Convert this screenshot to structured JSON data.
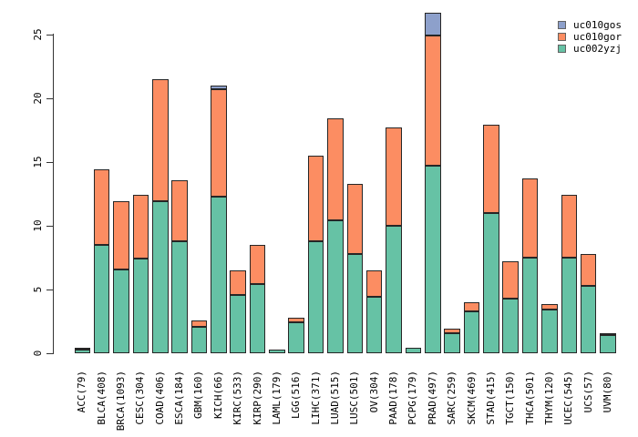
{
  "colors": {
    "background": "#ffffff",
    "axis": "#333333",
    "bar_border": "#262626",
    "uc010gos": "#8da0cb",
    "uc010gor": "#fc8d62",
    "uc002yzj": "#66c2a5"
  },
  "chart_data": {
    "type": "bar",
    "stacked": true,
    "title": "",
    "xlabel": "",
    "ylabel": "",
    "grid": false,
    "ylim": [
      0,
      25
    ],
    "y_ticks": [
      0,
      5,
      10,
      15,
      20,
      25
    ],
    "categories": [
      "ACC(79)",
      "BLCA(408)",
      "BRCA(1093)",
      "CESC(304)",
      "COAD(406)",
      "ESCA(184)",
      "GBM(160)",
      "KICH(66)",
      "KIRC(533)",
      "KIRP(290)",
      "LAML(179)",
      "LGG(516)",
      "LIHC(371)",
      "LUAD(515)",
      "LUSC(501)",
      "OV(304)",
      "PAAD(178)",
      "PCPG(179)",
      "PRAD(497)",
      "SARC(259)",
      "SKCM(469)",
      "STAD(415)",
      "TGCT(150)",
      "THCA(501)",
      "THYM(120)",
      "UCEC(545)",
      "UCS(57)",
      "UVM(80)"
    ],
    "series": [
      {
        "name": "uc002yzj",
        "color_key": "uc002yzj",
        "values": [
          0.3,
          8.5,
          6.6,
          7.4,
          11.9,
          8.8,
          2.1,
          12.3,
          4.6,
          5.4,
          0.3,
          2.4,
          8.8,
          10.4,
          7.8,
          4.4,
          10.0,
          0.4,
          14.7,
          1.6,
          3.3,
          11.0,
          4.3,
          7.5,
          3.4,
          7.5,
          5.3,
          1.4
        ]
      },
      {
        "name": "uc010gor",
        "color_key": "uc010gor",
        "values": [
          0.15,
          5.9,
          5.3,
          5.0,
          9.6,
          4.8,
          0.5,
          8.4,
          1.9,
          3.1,
          0,
          0.4,
          6.7,
          8.0,
          5.5,
          2.1,
          7.7,
          0,
          10.2,
          0.35,
          0.7,
          6.9,
          2.9,
          6.2,
          0.45,
          4.9,
          2.5,
          0.2
        ]
      },
      {
        "name": "uc010gos",
        "color_key": "uc010gos",
        "values": [
          0,
          0,
          0,
          0,
          0,
          0,
          0,
          0.3,
          0,
          0,
          0,
          0,
          0,
          0,
          0,
          0,
          0,
          0,
          1.8,
          0,
          0,
          0,
          0,
          0,
          0,
          0,
          0,
          0
        ]
      }
    ],
    "totals": [
      0.45,
      14.4,
      11.9,
      12.4,
      21.5,
      13.6,
      2.6,
      21.0,
      6.5,
      8.5,
      0.3,
      2.8,
      15.5,
      18.4,
      13.3,
      6.5,
      17.7,
      0.4,
      26.7,
      1.95,
      4.0,
      17.9,
      7.2,
      13.7,
      3.85,
      12.4,
      7.8,
      1.6
    ],
    "legend": {
      "position": "top-right",
      "entries": [
        "uc010gos",
        "uc010gor",
        "uc002yzj"
      ]
    }
  }
}
